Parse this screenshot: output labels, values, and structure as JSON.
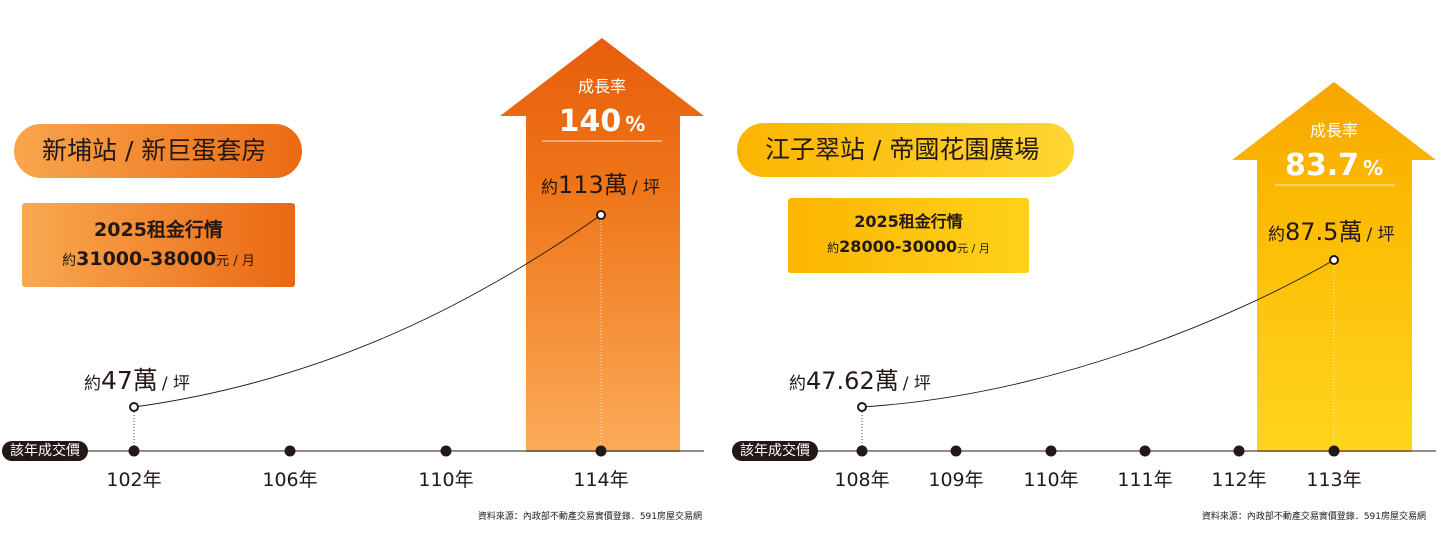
{
  "footer_label": "該年成交價",
  "source_note": "資料來源：內政部不動產交易實價登錄．591房屋交易網",
  "panels": [
    {
      "title": "新埔站 / 新巨蛋套房",
      "rent": {
        "title": "2025租金行情",
        "prefix": "約",
        "value": "31000-38000",
        "unit": "元 / 月"
      },
      "growth": {
        "label": "成長率",
        "value": "140",
        "pct": "%"
      },
      "colors": {
        "primary": "#e85d0c",
        "light": "#f9a94f",
        "pill_from": "#f8a64d",
        "pill_to": "#ec6a14"
      }
    },
    {
      "title": "江子翠站 / 帝國花園廣場",
      "rent": {
        "title": "2025租金行情",
        "prefix": "約",
        "value": "28000-30000",
        "unit": "元 / 月"
      },
      "growth": {
        "label": "成長率",
        "value": "83.7",
        "pct": "%"
      },
      "colors": {
        "primary": "#f7a800",
        "light": "#ffd21a",
        "pill_from": "#fbb500",
        "pill_to": "#ffd633"
      }
    }
  ],
  "chart_data": [
    {
      "type": "line",
      "xlabel": "該年成交價",
      "categories": [
        "102年",
        "106年",
        "110年",
        "114年"
      ],
      "points": [
        {
          "x": "102年",
          "y": 47,
          "label_prefix": "約",
          "label_value": "47萬",
          "label_unit": "/ 坪"
        },
        {
          "x": "114年",
          "y": 113,
          "label_prefix": "約",
          "label_value": "113萬",
          "label_unit": "/ 坪"
        }
      ],
      "growth_rate_percent": 140
    },
    {
      "type": "line",
      "xlabel": "該年成交價",
      "categories": [
        "108年",
        "109年",
        "110年",
        "111年",
        "112年",
        "113年"
      ],
      "points": [
        {
          "x": "108年",
          "y": 47.62,
          "label_prefix": "約",
          "label_value": "47.62萬",
          "label_unit": "/ 坪"
        },
        {
          "x": "113年",
          "y": 87.5,
          "label_prefix": "約",
          "label_value": "87.5萬",
          "label_unit": "/ 坪"
        }
      ],
      "growth_rate_percent": 83.7
    }
  ]
}
